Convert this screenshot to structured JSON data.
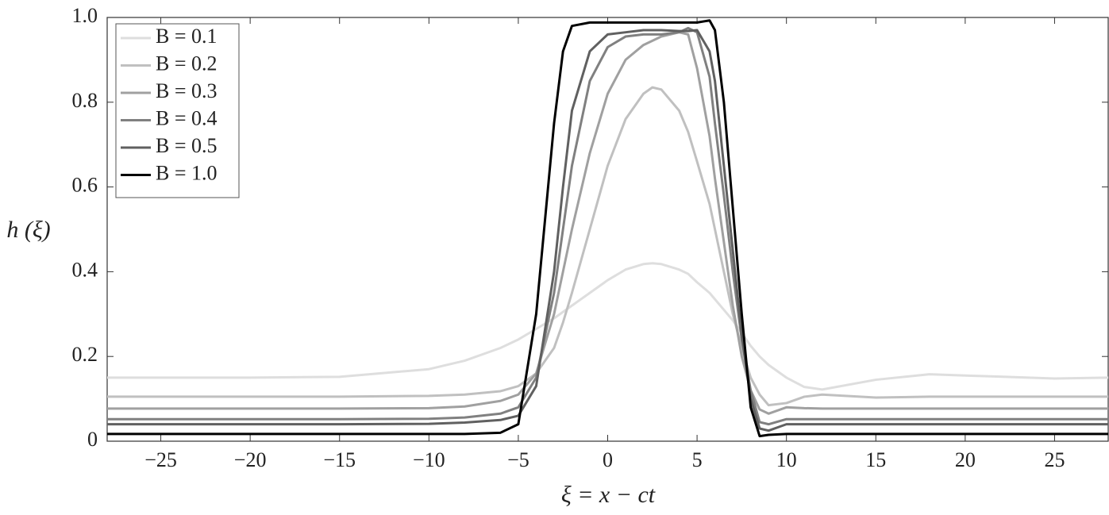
{
  "chart_data": {
    "type": "line",
    "xlabel": "ξ = x − ct",
    "ylabel": "h (ξ)",
    "x": [
      -28,
      -25,
      -20,
      -15,
      -10,
      -8,
      -6,
      -5,
      -4,
      -3,
      -2.5,
      -2,
      -1,
      0,
      1,
      2,
      2.5,
      3,
      4,
      4.5,
      5,
      5.7,
      6,
      6.5,
      7,
      7.5,
      8,
      8.5,
      9,
      10,
      11,
      12,
      15,
      18,
      20,
      25,
      28
    ],
    "series": [
      {
        "name": "B = 0.1",
        "color": "#dedede",
        "values": [
          0.15,
          0.15,
          0.15,
          0.152,
          0.17,
          0.19,
          0.22,
          0.24,
          0.265,
          0.29,
          0.305,
          0.32,
          0.35,
          0.38,
          0.405,
          0.418,
          0.42,
          0.418,
          0.405,
          0.395,
          0.375,
          0.35,
          0.335,
          0.31,
          0.285,
          0.255,
          0.225,
          0.2,
          0.18,
          0.15,
          0.128,
          0.122,
          0.145,
          0.158,
          0.155,
          0.148,
          0.15
        ]
      },
      {
        "name": "B = 0.2",
        "color": "#c0c0c0",
        "values": [
          0.105,
          0.105,
          0.105,
          0.105,
          0.107,
          0.11,
          0.118,
          0.13,
          0.16,
          0.22,
          0.28,
          0.35,
          0.5,
          0.65,
          0.76,
          0.82,
          0.835,
          0.83,
          0.78,
          0.73,
          0.66,
          0.56,
          0.5,
          0.4,
          0.3,
          0.22,
          0.15,
          0.11,
          0.085,
          0.09,
          0.105,
          0.11,
          0.103,
          0.105,
          0.105,
          0.105,
          0.105
        ]
      },
      {
        "name": "B = 0.3",
        "color": "#a0a0a0",
        "values": [
          0.077,
          0.077,
          0.077,
          0.077,
          0.078,
          0.082,
          0.095,
          0.11,
          0.16,
          0.3,
          0.4,
          0.5,
          0.68,
          0.82,
          0.9,
          0.935,
          0.945,
          0.955,
          0.965,
          0.96,
          0.88,
          0.72,
          0.62,
          0.47,
          0.32,
          0.2,
          0.12,
          0.075,
          0.065,
          0.08,
          0.078,
          0.077,
          0.077,
          0.077,
          0.077,
          0.077,
          0.077
        ]
      },
      {
        "name": "B = 0.4",
        "color": "#808080",
        "values": [
          0.052,
          0.052,
          0.052,
          0.052,
          0.053,
          0.056,
          0.065,
          0.08,
          0.15,
          0.35,
          0.5,
          0.65,
          0.85,
          0.93,
          0.955,
          0.96,
          0.96,
          0.96,
          0.965,
          0.975,
          0.965,
          0.86,
          0.75,
          0.58,
          0.4,
          0.24,
          0.12,
          0.045,
          0.04,
          0.052,
          0.052,
          0.052,
          0.052,
          0.052,
          0.052,
          0.052,
          0.052
        ]
      },
      {
        "name": "B = 0.5",
        "color": "#606060",
        "values": [
          0.04,
          0.04,
          0.04,
          0.04,
          0.041,
          0.044,
          0.05,
          0.06,
          0.13,
          0.4,
          0.6,
          0.78,
          0.92,
          0.96,
          0.965,
          0.97,
          0.97,
          0.97,
          0.968,
          0.968,
          0.97,
          0.92,
          0.85,
          0.65,
          0.45,
          0.25,
          0.1,
          0.03,
          0.025,
          0.04,
          0.04,
          0.04,
          0.04,
          0.04,
          0.04,
          0.04,
          0.04
        ]
      },
      {
        "name": "B = 1.0",
        "color": "#000000",
        "values": [
          0.017,
          0.017,
          0.017,
          0.017,
          0.017,
          0.017,
          0.02,
          0.04,
          0.3,
          0.75,
          0.92,
          0.98,
          0.988,
          0.988,
          0.988,
          0.988,
          0.988,
          0.988,
          0.988,
          0.988,
          0.988,
          0.993,
          0.97,
          0.8,
          0.55,
          0.3,
          0.08,
          0.012,
          0.015,
          0.017,
          0.017,
          0.017,
          0.017,
          0.017,
          0.017,
          0.017,
          0.017
        ]
      }
    ],
    "xlim": [
      -28,
      28
    ],
    "xticks": [
      {
        "value": -25,
        "label": "−25"
      },
      {
        "value": -20,
        "label": "−20"
      },
      {
        "value": -15,
        "label": "−15"
      },
      {
        "value": -10,
        "label": "−10"
      },
      {
        "value": -5,
        "label": "−5"
      },
      0,
      5,
      10,
      15,
      20,
      25
    ],
    "ylim": [
      0,
      1
    ],
    "yticks": [
      0,
      0.2,
      0.4,
      0.6,
      0.8,
      {
        "value": 1,
        "label": "1.0"
      }
    ],
    "legend": "upper left"
  }
}
